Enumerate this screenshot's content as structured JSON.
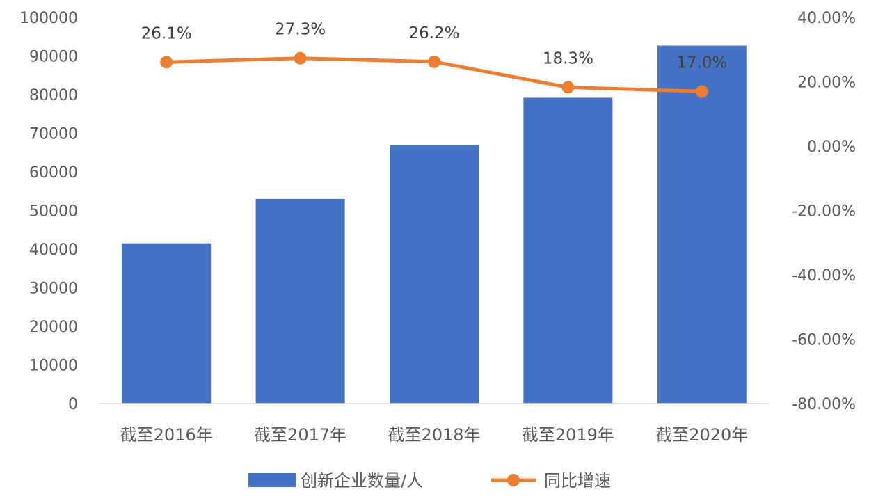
{
  "chart_data": {
    "type": "bar+line",
    "categories": [
      "截至2016年",
      "截至2017年",
      "截至2018年",
      "截至2019年",
      "截至2020年"
    ],
    "series": [
      {
        "name": "创新企业数量/人",
        "type": "bar",
        "axis": "left",
        "values": [
          41500,
          53000,
          67000,
          79200,
          92700
        ],
        "color": "#4472C4"
      },
      {
        "name": "同比增速",
        "type": "line",
        "axis": "right",
        "values": [
          26.1,
          27.3,
          26.2,
          18.3,
          17.0
        ],
        "data_labels": [
          "26.1%",
          "27.3%",
          "26.2%",
          "18.3%",
          "17.0%"
        ],
        "color": "#ED7D31"
      }
    ],
    "y_left": {
      "min": 0,
      "max": 100000,
      "step": 10000,
      "ticks": [
        "0",
        "10000",
        "20000",
        "30000",
        "40000",
        "50000",
        "60000",
        "70000",
        "80000",
        "90000",
        "100000"
      ]
    },
    "y_right": {
      "min": -80,
      "max": 40,
      "step": 20,
      "ticks": [
        "-80.00%",
        "-60.00%",
        "-40.00%",
        "-20.00%",
        "0.00%",
        "20.00%",
        "40.00%"
      ]
    },
    "legend_position": "bottom",
    "grid": false
  }
}
